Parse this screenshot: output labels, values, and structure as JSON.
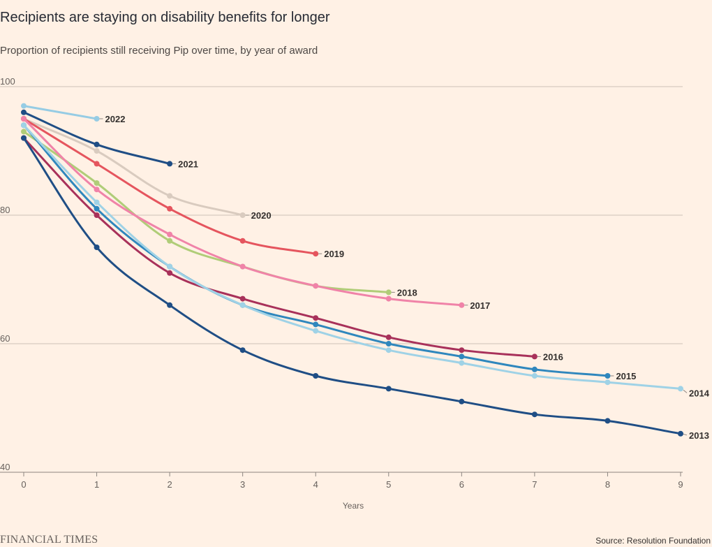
{
  "header": {
    "title": "Recipients are staying on disability benefits for longer",
    "subtitle": "Proportion of recipients still receiving Pip over time, by year of award"
  },
  "footer": {
    "brand": "FINANCIAL TIMES",
    "source": "Source: Resolution Foundation"
  },
  "chart_data": {
    "type": "line",
    "title": "Recipients are staying on disability benefits for longer",
    "subtitle": "Proportion of recipients still receiving Pip over time, by year of award",
    "xlabel": "Years",
    "ylabel": "",
    "xlim": [
      0,
      9
    ],
    "ylim": [
      40,
      100
    ],
    "x_ticks": [
      0,
      1,
      2,
      3,
      4,
      5,
      6,
      7,
      8,
      9
    ],
    "y_ticks": [
      40,
      60,
      80,
      100
    ],
    "grid": "horizontal",
    "legend": "direct-labels",
    "series": [
      {
        "name": "2022",
        "color": "#96cce4",
        "x": [
          0,
          1
        ],
        "values": [
          97,
          95
        ]
      },
      {
        "name": "2021",
        "color": "#1f4e85",
        "x": [
          0,
          1,
          2
        ],
        "values": [
          96,
          91,
          88
        ]
      },
      {
        "name": "2020",
        "color": "#d9cbbf",
        "x": [
          0,
          1,
          2,
          3
        ],
        "values": [
          95,
          90,
          83,
          80
        ]
      },
      {
        "name": "2019",
        "color": "#e5555e",
        "x": [
          0,
          1,
          2,
          3,
          4
        ],
        "values": [
          95,
          88,
          81,
          76,
          74
        ]
      },
      {
        "name": "2018",
        "color": "#b0cd78",
        "x": [
          0,
          1,
          2,
          3,
          4,
          5
        ],
        "values": [
          93,
          85,
          76,
          72,
          69,
          68
        ]
      },
      {
        "name": "2017",
        "color": "#f083a8",
        "x": [
          0,
          1,
          2,
          3,
          4,
          5,
          6
        ],
        "values": [
          95,
          84,
          77,
          72,
          69,
          67,
          66
        ]
      },
      {
        "name": "2016",
        "color": "#a8315a",
        "x": [
          0,
          1,
          2,
          3,
          4,
          5,
          6,
          7
        ],
        "values": [
          92,
          80,
          71,
          67,
          64,
          61,
          59,
          58
        ]
      },
      {
        "name": "2015",
        "color": "#2f87bd",
        "x": [
          0,
          1,
          2,
          3,
          4,
          5,
          6,
          7,
          8
        ],
        "values": [
          94,
          81,
          72,
          66,
          63,
          60,
          58,
          56,
          55
        ]
      },
      {
        "name": "2014",
        "color": "#9fd2e6",
        "x": [
          0,
          1,
          2,
          3,
          4,
          5,
          6,
          7,
          8,
          9
        ],
        "values": [
          94,
          82,
          72,
          66,
          62,
          59,
          57,
          55,
          54,
          53
        ]
      },
      {
        "name": "2013",
        "color": "#1f4e85",
        "x": [
          0,
          1,
          2,
          3,
          4,
          5,
          6,
          7,
          8,
          9
        ],
        "values": [
          92,
          75,
          66,
          59,
          55,
          53,
          51,
          49,
          48,
          46
        ]
      }
    ]
  }
}
